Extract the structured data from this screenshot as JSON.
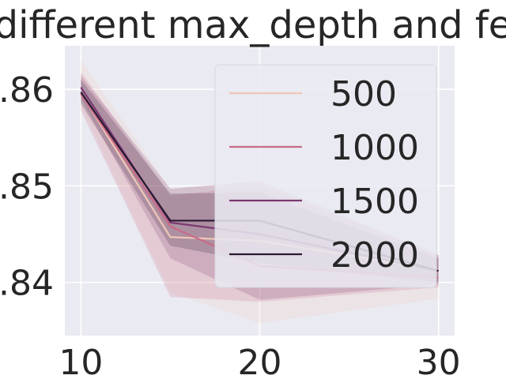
{
  "chart_data": {
    "type": "line",
    "title": "different max_depth and fe",
    "xlabel": "",
    "ylabel": "",
    "x": [
      10,
      15,
      20,
      30
    ],
    "xlim": [
      9.1,
      30.9
    ],
    "ylim": [
      0.8345,
      0.8645
    ],
    "x_ticks": [
      "10",
      "20",
      "30"
    ],
    "y_ticks": [
      ".84",
      ".85",
      ".86"
    ],
    "grid": true,
    "legend_position": "top-right",
    "series": [
      {
        "name": "500",
        "color": "#f0c7b6",
        "values": [
          0.8596,
          0.8447,
          0.8443,
          0.8413
        ],
        "ci_low": [
          0.8583,
          0.839,
          0.8358,
          0.8383
        ],
        "ci_high": [
          0.863,
          0.8497,
          0.8505,
          0.843
        ]
      },
      {
        "name": "1000",
        "color": "#c86b85",
        "values": [
          0.8595,
          0.8458,
          0.8417,
          0.8405
        ],
        "ci_low": [
          0.8578,
          0.8385,
          0.838,
          0.8395
        ],
        "ci_high": [
          0.8618,
          0.849,
          0.85,
          0.8428
        ]
      },
      {
        "name": "1500",
        "color": "#7a3a72",
        "values": [
          0.8602,
          0.8462,
          0.845,
          0.8412
        ],
        "ci_low": [
          0.859,
          0.8425,
          0.8382,
          0.8398
        ],
        "ci_high": [
          0.8614,
          0.8497,
          0.8505,
          0.8428
        ]
      },
      {
        "name": "2000",
        "color": "#2b1832",
        "values": [
          0.8597,
          0.8464,
          0.8464,
          0.8412
        ],
        "ci_low": [
          0.8585,
          0.8438,
          0.842,
          0.84
        ],
        "ci_high": [
          0.861,
          0.8492,
          0.8493,
          0.8425
        ]
      }
    ],
    "colors": {
      "background": "#eaeaf2",
      "grid": "#ffffff",
      "text": "#262626",
      "legend_bg": "#eaeaf2"
    }
  }
}
